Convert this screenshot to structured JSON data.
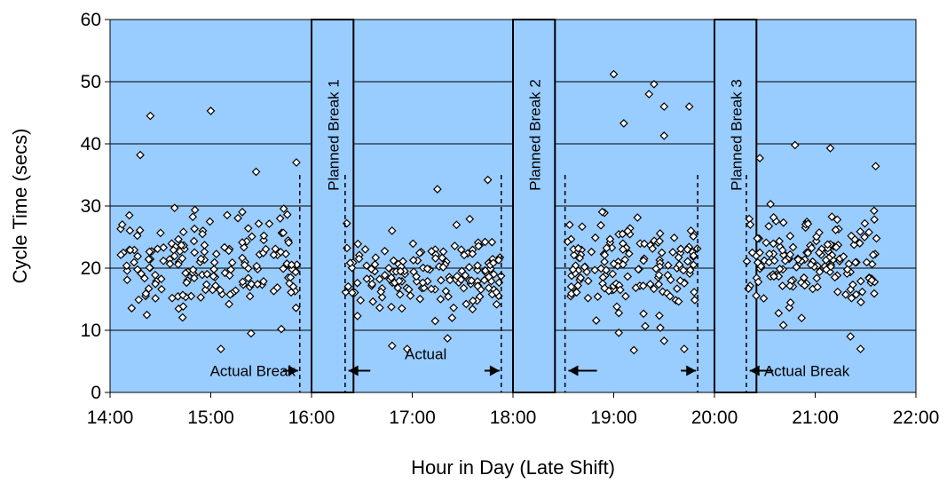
{
  "chart_data": {
    "type": "scatter",
    "xlabel": "Hour in Day (Late Shift)",
    "ylabel": "Cycle Time (secs)",
    "xlim": [
      "14:00",
      "22:00"
    ],
    "ylim": [
      0,
      60
    ],
    "x_ticks": [
      "14:00",
      "15:00",
      "16:00",
      "17:00",
      "18:00",
      "19:00",
      "20:00",
      "21:00",
      "22:00"
    ],
    "y_ticks": [
      0,
      10,
      20,
      30,
      40,
      50,
      60
    ],
    "grid": "horizontal",
    "plot_background": "#99ccff",
    "marker": "diamond-open",
    "planned_breaks": [
      {
        "label": "Planned Break 1",
        "start": "16:00",
        "end": "16:25"
      },
      {
        "label": "Planned Break 2",
        "start": "18:00",
        "end": "18:25"
      },
      {
        "label": "Planned Break 3",
        "start": "20:00",
        "end": "20:25"
      }
    ],
    "actual_break_lines": [
      "15:53",
      "16:20",
      "17:53",
      "18:31",
      "19:50",
      "20:19"
    ],
    "annotations": [
      {
        "text": "Actual Break",
        "x": "15:25",
        "y": 3.5
      },
      {
        "text": "Actual",
        "x": "17:08",
        "y": 6.2
      },
      {
        "text": "Actual Break",
        "x": "20:55",
        "y": 3.5
      }
    ],
    "arrows": [
      {
        "from": "15:43",
        "to": "15:52",
        "y": 3.5
      },
      {
        "from": "16:35",
        "to": "16:22",
        "y": 3.5
      },
      {
        "from": "17:43",
        "to": "17:52",
        "y": 3.5
      },
      {
        "from": "18:50",
        "to": "18:33",
        "y": 3.5
      },
      {
        "from": "19:40",
        "to": "19:49",
        "y": 3.5
      },
      {
        "from": "20:35",
        "to": "20:21",
        "y": 3.5
      }
    ],
    "clusters": [
      {
        "start": "14:06",
        "end": "15:53",
        "center": 21,
        "spread": 5.5,
        "count": 170,
        "outliers": [
          [
            14.4,
            44.5
          ],
          [
            15.0,
            45.3
          ],
          [
            14.3,
            38.2
          ],
          [
            15.45,
            35.5
          ],
          [
            15.85,
            37.0
          ],
          [
            15.1,
            7.0
          ],
          [
            15.4,
            9.5
          ],
          [
            15.7,
            10.2
          ]
        ]
      },
      {
        "start": "16:20",
        "end": "17:53",
        "center": 19,
        "spread": 4.2,
        "count": 150,
        "outliers": [
          [
            16.35,
            27.2
          ],
          [
            17.25,
            32.7
          ],
          [
            17.75,
            34.2
          ],
          [
            16.95,
            7.0
          ],
          [
            17.35,
            8.7
          ],
          [
            16.8,
            7.5
          ]
        ]
      },
      {
        "start": "18:32",
        "end": "19:50",
        "center": 20,
        "spread": 4.8,
        "count": 145,
        "outliers": [
          [
            19.0,
            51.2
          ],
          [
            19.4,
            49.6
          ],
          [
            19.35,
            48.0
          ],
          [
            19.5,
            46.0
          ],
          [
            19.75,
            46.0
          ],
          [
            19.1,
            43.3
          ],
          [
            19.5,
            41.3
          ],
          [
            19.05,
            9.6
          ],
          [
            19.5,
            8.3
          ],
          [
            19.2,
            6.8
          ],
          [
            19.7,
            7.0
          ]
        ]
      },
      {
        "start": "20:19",
        "end": "21:37",
        "center": 21,
        "spread": 5.2,
        "count": 155,
        "outliers": [
          [
            20.8,
            39.8
          ],
          [
            21.15,
            39.3
          ],
          [
            20.45,
            37.7
          ],
          [
            21.6,
            36.4
          ],
          [
            21.45,
            7.0
          ],
          [
            21.35,
            9.0
          ]
        ]
      }
    ]
  }
}
